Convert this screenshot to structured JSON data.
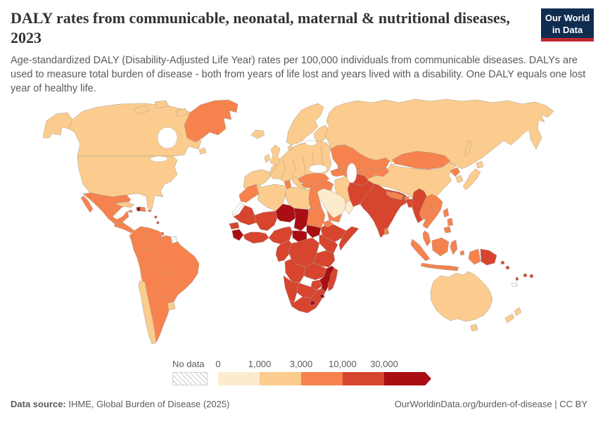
{
  "header": {
    "title": "DALY rates from communicable, neonatal, maternal & nutritional diseases, 2023",
    "subtitle": "Age-standardized DALY (Disability-Adjusted Life Year) rates per 100,000 individuals from communicable diseases. DALYs are used to measure total burden of disease - both from years of life lost and years lived with a disability. One DALY equals one lost year of healthy life."
  },
  "logo": {
    "line1": "Our World",
    "line2": "in Data",
    "bg": "#102D50",
    "accent": "#C0272D"
  },
  "legend": {
    "no_data_label": "No data",
    "ticks": [
      "0",
      "1,000",
      "3,000",
      "10,000",
      "30,000"
    ],
    "bucket_colors": {
      "b1": "#FDEBCD",
      "b2": "#FBCC8D",
      "b3": "#F6824E",
      "b4": "#D7452F",
      "b5": "#A90E13"
    },
    "bucket_labels": {
      "b1": "0-1,000",
      "b2": "1,000-3,000",
      "b3": "3,000-10,000",
      "b4": "10,000-30,000",
      "b5": "30,000+",
      "nodata": "No data"
    }
  },
  "map": {
    "regions": {
      "canada": "b2",
      "usa": "b2",
      "greenland": "b3",
      "iceland": "b2",
      "mexico": "b3",
      "central-america": "b3",
      "cuba": "b2",
      "haiti": "b5",
      "dominican-republic": "b3",
      "jamaica": "b3",
      "puerto-rico": "b3",
      "lesser-antilles": "b4",
      "south-america": "b3",
      "chile": "b2",
      "uruguay": "b2",
      "french-guiana": "nodata",
      "iberia": "b2",
      "europe-central": "b2",
      "italy": "b2",
      "balkans-greece": "b2",
      "scandinavia": "b2",
      "finland": "b2",
      "denmark": "b2",
      "uk": "b2",
      "ireland": "b2",
      "russia": "b2",
      "china": "b2",
      "kazakhstan": "b3",
      "central-asia": "b3",
      "mongolia": "b3",
      "turkey": "b3",
      "caucasus": "b3",
      "iraq-syria": "b3",
      "iran": "b2",
      "saudi-arabia": "b1",
      "yemen": "b3",
      "oman": "b1",
      "afghanistan": "b4",
      "pakistan": "b4",
      "india": "b4",
      "nepal": "b3",
      "bhutan": "b3",
      "bangladesh": "b4",
      "sri-lanka": "b3",
      "myanmar": "b4",
      "indochina": "b3",
      "malay-peninsula": "b3",
      "indonesia": "b3",
      "philippines": "b3",
      "west-papua": "b3",
      "papua-new-guinea": "b4",
      "solomon-islands": "b4",
      "vanuatu": "b4",
      "fiji": "b4",
      "new-caledonia": "nodata",
      "north-korea": "b3",
      "south-korea": "b2",
      "japan": "b2",
      "taiwan": "b3",
      "morocco": "b3",
      "western-sahara": "nodata",
      "algeria": "b2",
      "tunisia": "b3",
      "libya": "b2",
      "egypt": "b3",
      "mauritania": "b4",
      "mali": "b4",
      "niger": "b5",
      "chad": "b5",
      "sudan": "b3",
      "south-sudan": "b5",
      "eritrea": "b3",
      "ethiopia": "b4",
      "somalia": "b4",
      "senegal": "b4",
      "guinea": "b5",
      "west-africa-coast": "b4",
      "nigeria": "b4",
      "cameroon-gabon": "b4",
      "central-african-republic": "b5",
      "drc": "b4",
      "kenya-uganda": "b4",
      "tanzania": "b4",
      "angola": "b4",
      "zambia": "b4",
      "mozambique": "b5",
      "zimbabwe": "b4",
      "namibia": "b4",
      "botswana": "b4",
      "south-africa": "b4",
      "lesotho": "b5",
      "eswatini": "b5",
      "madagascar": "b4",
      "australia": "b2",
      "tasmania": "b2",
      "new-zealand": "b2"
    }
  },
  "footer": {
    "source_label": "Data source:",
    "source_text": " IHME, Global Burden of Disease (2025)",
    "right_text": "OurWorldinData.org/burden-of-disease | CC BY"
  }
}
